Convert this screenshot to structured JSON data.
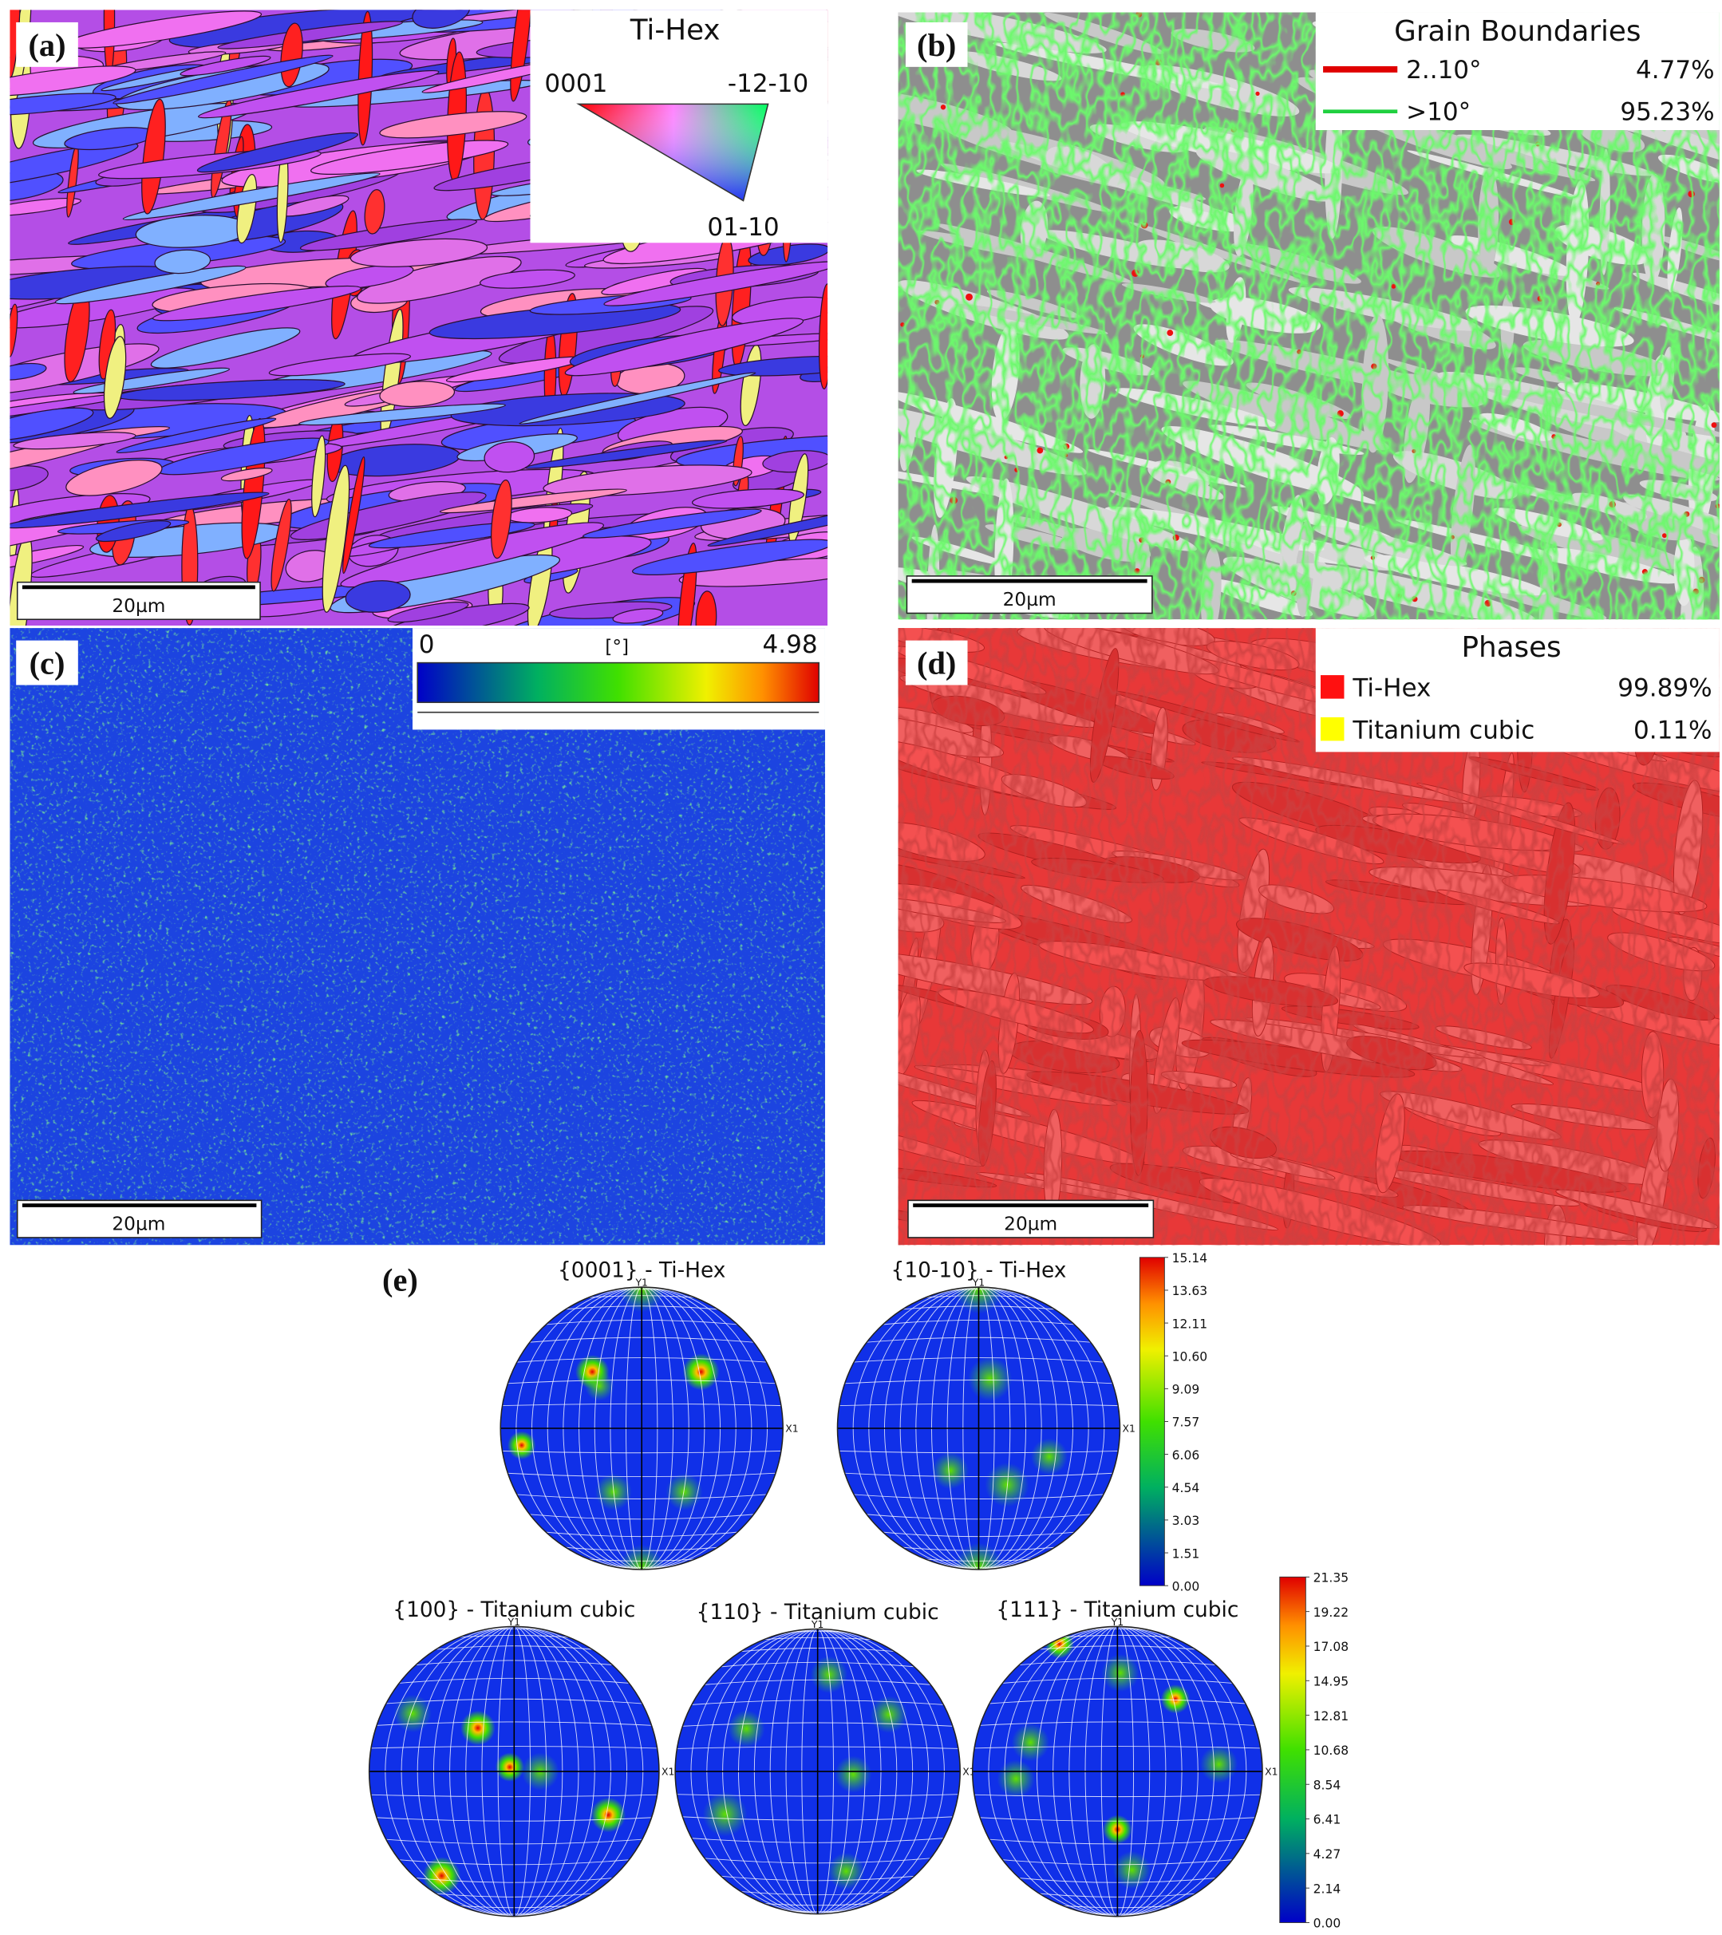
{
  "panels": {
    "a": {
      "label": "(a)",
      "ipf_key": {
        "title": "Ti-Hex",
        "left": "0001",
        "right": "-12-10",
        "bottom": "01-10"
      },
      "scale_bar": "20µm"
    },
    "b": {
      "label": "(b)",
      "legend": {
        "title": "Grain Boundaries",
        "items": [
          {
            "name": "2..10°",
            "fraction": "4.77%"
          },
          {
            "name": ">10°",
            "fraction": "95.23%"
          }
        ]
      },
      "scale_bar": "20µm"
    },
    "c": {
      "label": "(c)",
      "colorbar": {
        "min": "0",
        "unit": "[°]",
        "max": "4.98"
      },
      "scale_bar": "20µm"
    },
    "d": {
      "label": "(d)",
      "legend": {
        "title": "Phases",
        "items": [
          {
            "name": "Ti-Hex",
            "fraction": "99.89%"
          },
          {
            "name": "Titanium cubic",
            "fraction": "0.11%"
          }
        ]
      },
      "scale_bar": "20µm"
    },
    "e": {
      "label": "(e)",
      "pole_figures": [
        {
          "title": "{0001} - Ti-Hex",
          "y_axis": "Y1",
          "x_axis": "X1"
        },
        {
          "title": "{10-10} - Ti-Hex",
          "y_axis": "Y1",
          "x_axis": "X1"
        },
        {
          "title": "{100} - Titanium cubic",
          "y_axis": "Y1",
          "x_axis": "X1"
        },
        {
          "title": "{110} - Titanium cubic",
          "y_axis": "Y1",
          "x_axis": "X1"
        },
        {
          "title": "{111} - Titanium cubic",
          "y_axis": "Y1",
          "x_axis": "X1"
        }
      ],
      "colorbars": [
        {
          "ticks": [
            "15.14",
            "13.63",
            "12.11",
            "10.60",
            "9.09",
            "7.57",
            "6.06",
            "4.54",
            "3.03",
            "1.51",
            "0.00"
          ]
        },
        {
          "ticks": [
            "21.35",
            "19.22",
            "17.08",
            "14.95",
            "12.81",
            "10.68",
            "8.54",
            "6.41",
            "4.27",
            "2.14",
            "0.00"
          ]
        }
      ]
    }
  }
}
